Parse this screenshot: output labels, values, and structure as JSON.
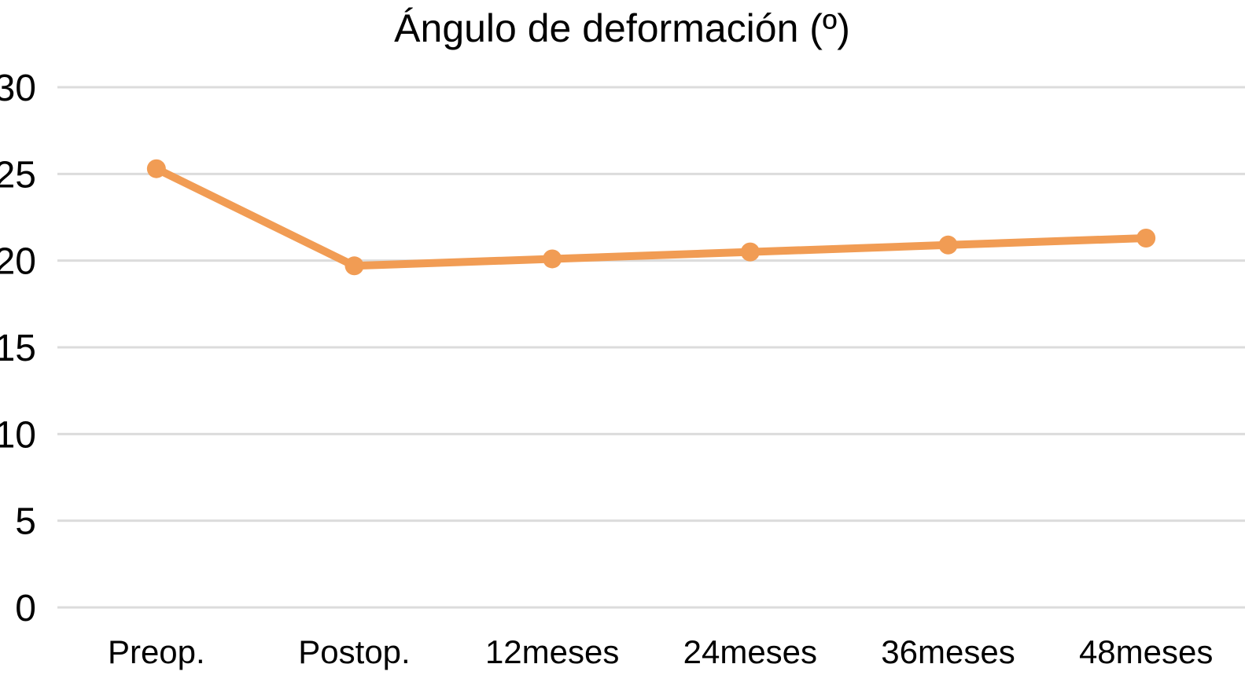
{
  "chart_data": {
    "type": "line",
    "title": "Ángulo de deformación (º)",
    "categories": [
      "Preop.",
      "Postop.",
      "12meses",
      "24meses",
      "36meses",
      "48meses"
    ],
    "series": [
      {
        "values": [
          25.3,
          19.7,
          20.1,
          20.5,
          20.9,
          21.3
        ],
        "color": "#F19C54"
      }
    ],
    "xlabel": "",
    "ylabel": "",
    "ylim": [
      0,
      30
    ],
    "yticks": [
      0,
      5,
      10,
      15,
      20,
      25,
      30
    ],
    "grid": true,
    "legend": false,
    "gridline_color": "#DCDCDC",
    "text_color": "#000000",
    "background_color": "#FFFFFF",
    "marker": "circle"
  }
}
